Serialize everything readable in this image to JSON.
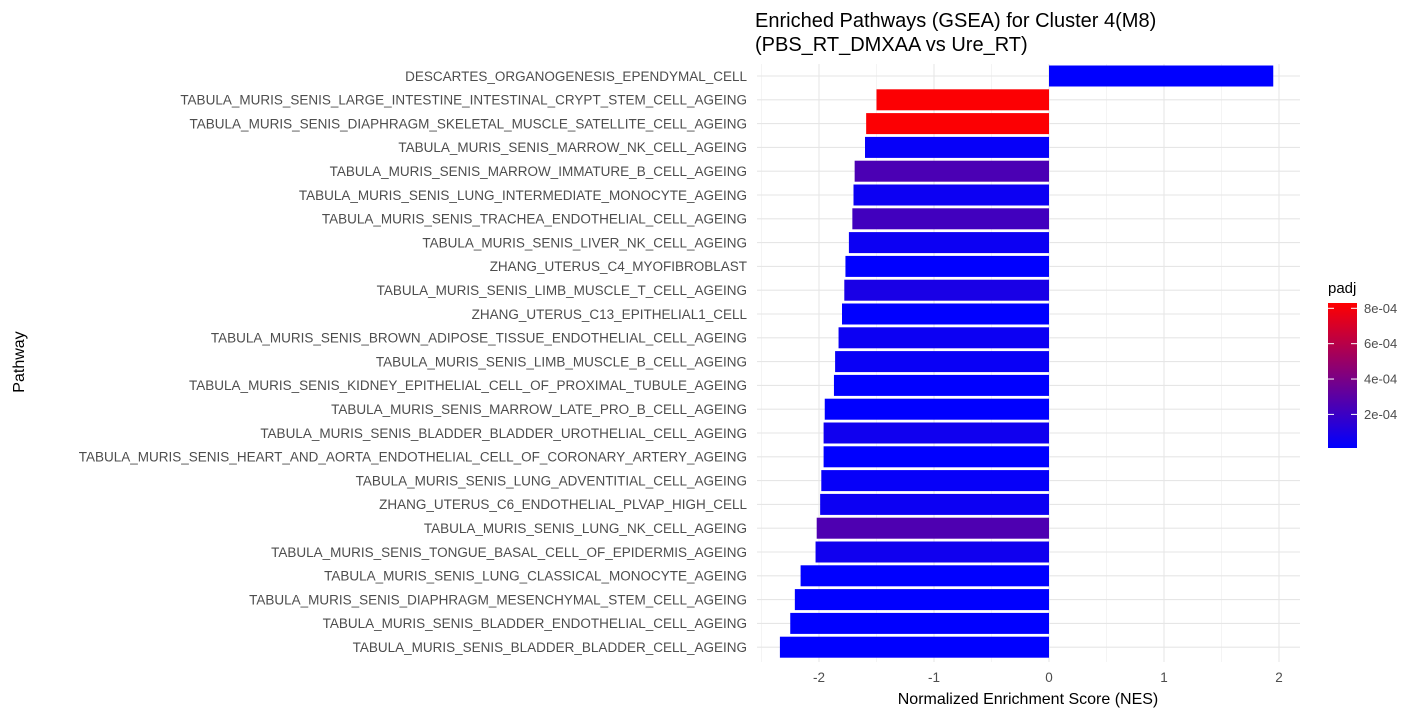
{
  "chart_data": {
    "type": "bar",
    "orientation": "horizontal",
    "title": [
      "Enriched Pathways (GSEA) for Cluster 4(M8)",
      "(PBS_RT_DMXAA vs Ure_RT)"
    ],
    "xlabel": "Normalized Enrichment Score (NES)",
    "ylabel": "Pathway",
    "xlim": [
      -2.6,
      2.2
    ],
    "xticks": [
      -2,
      -1,
      0,
      1,
      2
    ],
    "grid": true,
    "categories": [
      "DESCARTES_ORGANOGENESIS_EPENDYMAL_CELL",
      "TABULA_MURIS_SENIS_LARGE_INTESTINE_INTESTINAL_CRYPT_STEM_CELL_AGEING",
      "TABULA_MURIS_SENIS_DIAPHRAGM_SKELETAL_MUSCLE_SATELLITE_CELL_AGEING",
      "TABULA_MURIS_SENIS_MARROW_NK_CELL_AGEING",
      "TABULA_MURIS_SENIS_MARROW_IMMATURE_B_CELL_AGEING",
      "TABULA_MURIS_SENIS_LUNG_INTERMEDIATE_MONOCYTE_AGEING",
      "TABULA_MURIS_SENIS_TRACHEA_ENDOTHELIAL_CELL_AGEING",
      "TABULA_MURIS_SENIS_LIVER_NK_CELL_AGEING",
      "ZHANG_UTERUS_C4_MYOFIBROBLAST",
      "TABULA_MURIS_SENIS_LIMB_MUSCLE_T_CELL_AGEING",
      "ZHANG_UTERUS_C13_EPITHELIAL1_CELL",
      "TABULA_MURIS_SENIS_BROWN_ADIPOSE_TISSUE_ENDOTHELIAL_CELL_AGEING",
      "TABULA_MURIS_SENIS_LIMB_MUSCLE_B_CELL_AGEING",
      "TABULA_MURIS_SENIS_KIDNEY_EPITHELIAL_CELL_OF_PROXIMAL_TUBULE_AGEING",
      "TABULA_MURIS_SENIS_MARROW_LATE_PRO_B_CELL_AGEING",
      "TABULA_MURIS_SENIS_BLADDER_BLADDER_UROTHELIAL_CELL_AGEING",
      "TABULA_MURIS_SENIS_HEART_AND_AORTA_ENDOTHELIAL_CELL_OF_CORONARY_ARTERY_AGEING",
      "TABULA_MURIS_SENIS_LUNG_ADVENTITIAL_CELL_AGEING",
      "ZHANG_UTERUS_C6_ENDOTHELIAL_PLVAP_HIGH_CELL",
      "TABULA_MURIS_SENIS_LUNG_NK_CELL_AGEING",
      "TABULA_MURIS_SENIS_TONGUE_BASAL_CELL_OF_EPIDERMIS_AGEING",
      "TABULA_MURIS_SENIS_LUNG_CLASSICAL_MONOCYTE_AGEING",
      "TABULA_MURIS_SENIS_DIAPHRAGM_MESENCHYMAL_STEM_CELL_AGEING",
      "TABULA_MURIS_SENIS_BLADDER_ENDOTHELIAL_CELL_AGEING",
      "TABULA_MURIS_SENIS_BLADDER_BLADDER_CELL_AGEING"
    ],
    "values": [
      1.95,
      -1.5,
      -1.59,
      -1.6,
      -1.69,
      -1.7,
      -1.71,
      -1.74,
      -1.77,
      -1.78,
      -1.8,
      -1.83,
      -1.86,
      -1.87,
      -1.95,
      -1.96,
      -1.96,
      -1.98,
      -1.99,
      -2.02,
      -2.03,
      -2.16,
      -2.21,
      -2.25,
      -2.34
    ],
    "padj": [
      1e-05,
      0.00082,
      0.00082,
      3e-05,
      0.00025,
      5e-05,
      0.00022,
      5e-05,
      1e-05,
      9e-05,
      1e-05,
      5e-05,
      4e-05,
      1e-05,
      1e-05,
      6e-05,
      1e-05,
      3e-05,
      5e-05,
      0.00026,
      6e-05,
      1e-05,
      1e-05,
      1e-05,
      1e-05
    ],
    "legend": {
      "title": "padj",
      "placement": "right",
      "range": [
        1e-05,
        0.00083
      ],
      "ticks": [
        0.0002,
        0.0004,
        0.0006,
        0.0008
      ],
      "tick_labels": [
        "2e-04",
        "4e-04",
        "6e-04",
        "8e-04"
      ],
      "low_color": "#0000ff",
      "high_color": "#ff0000"
    }
  }
}
